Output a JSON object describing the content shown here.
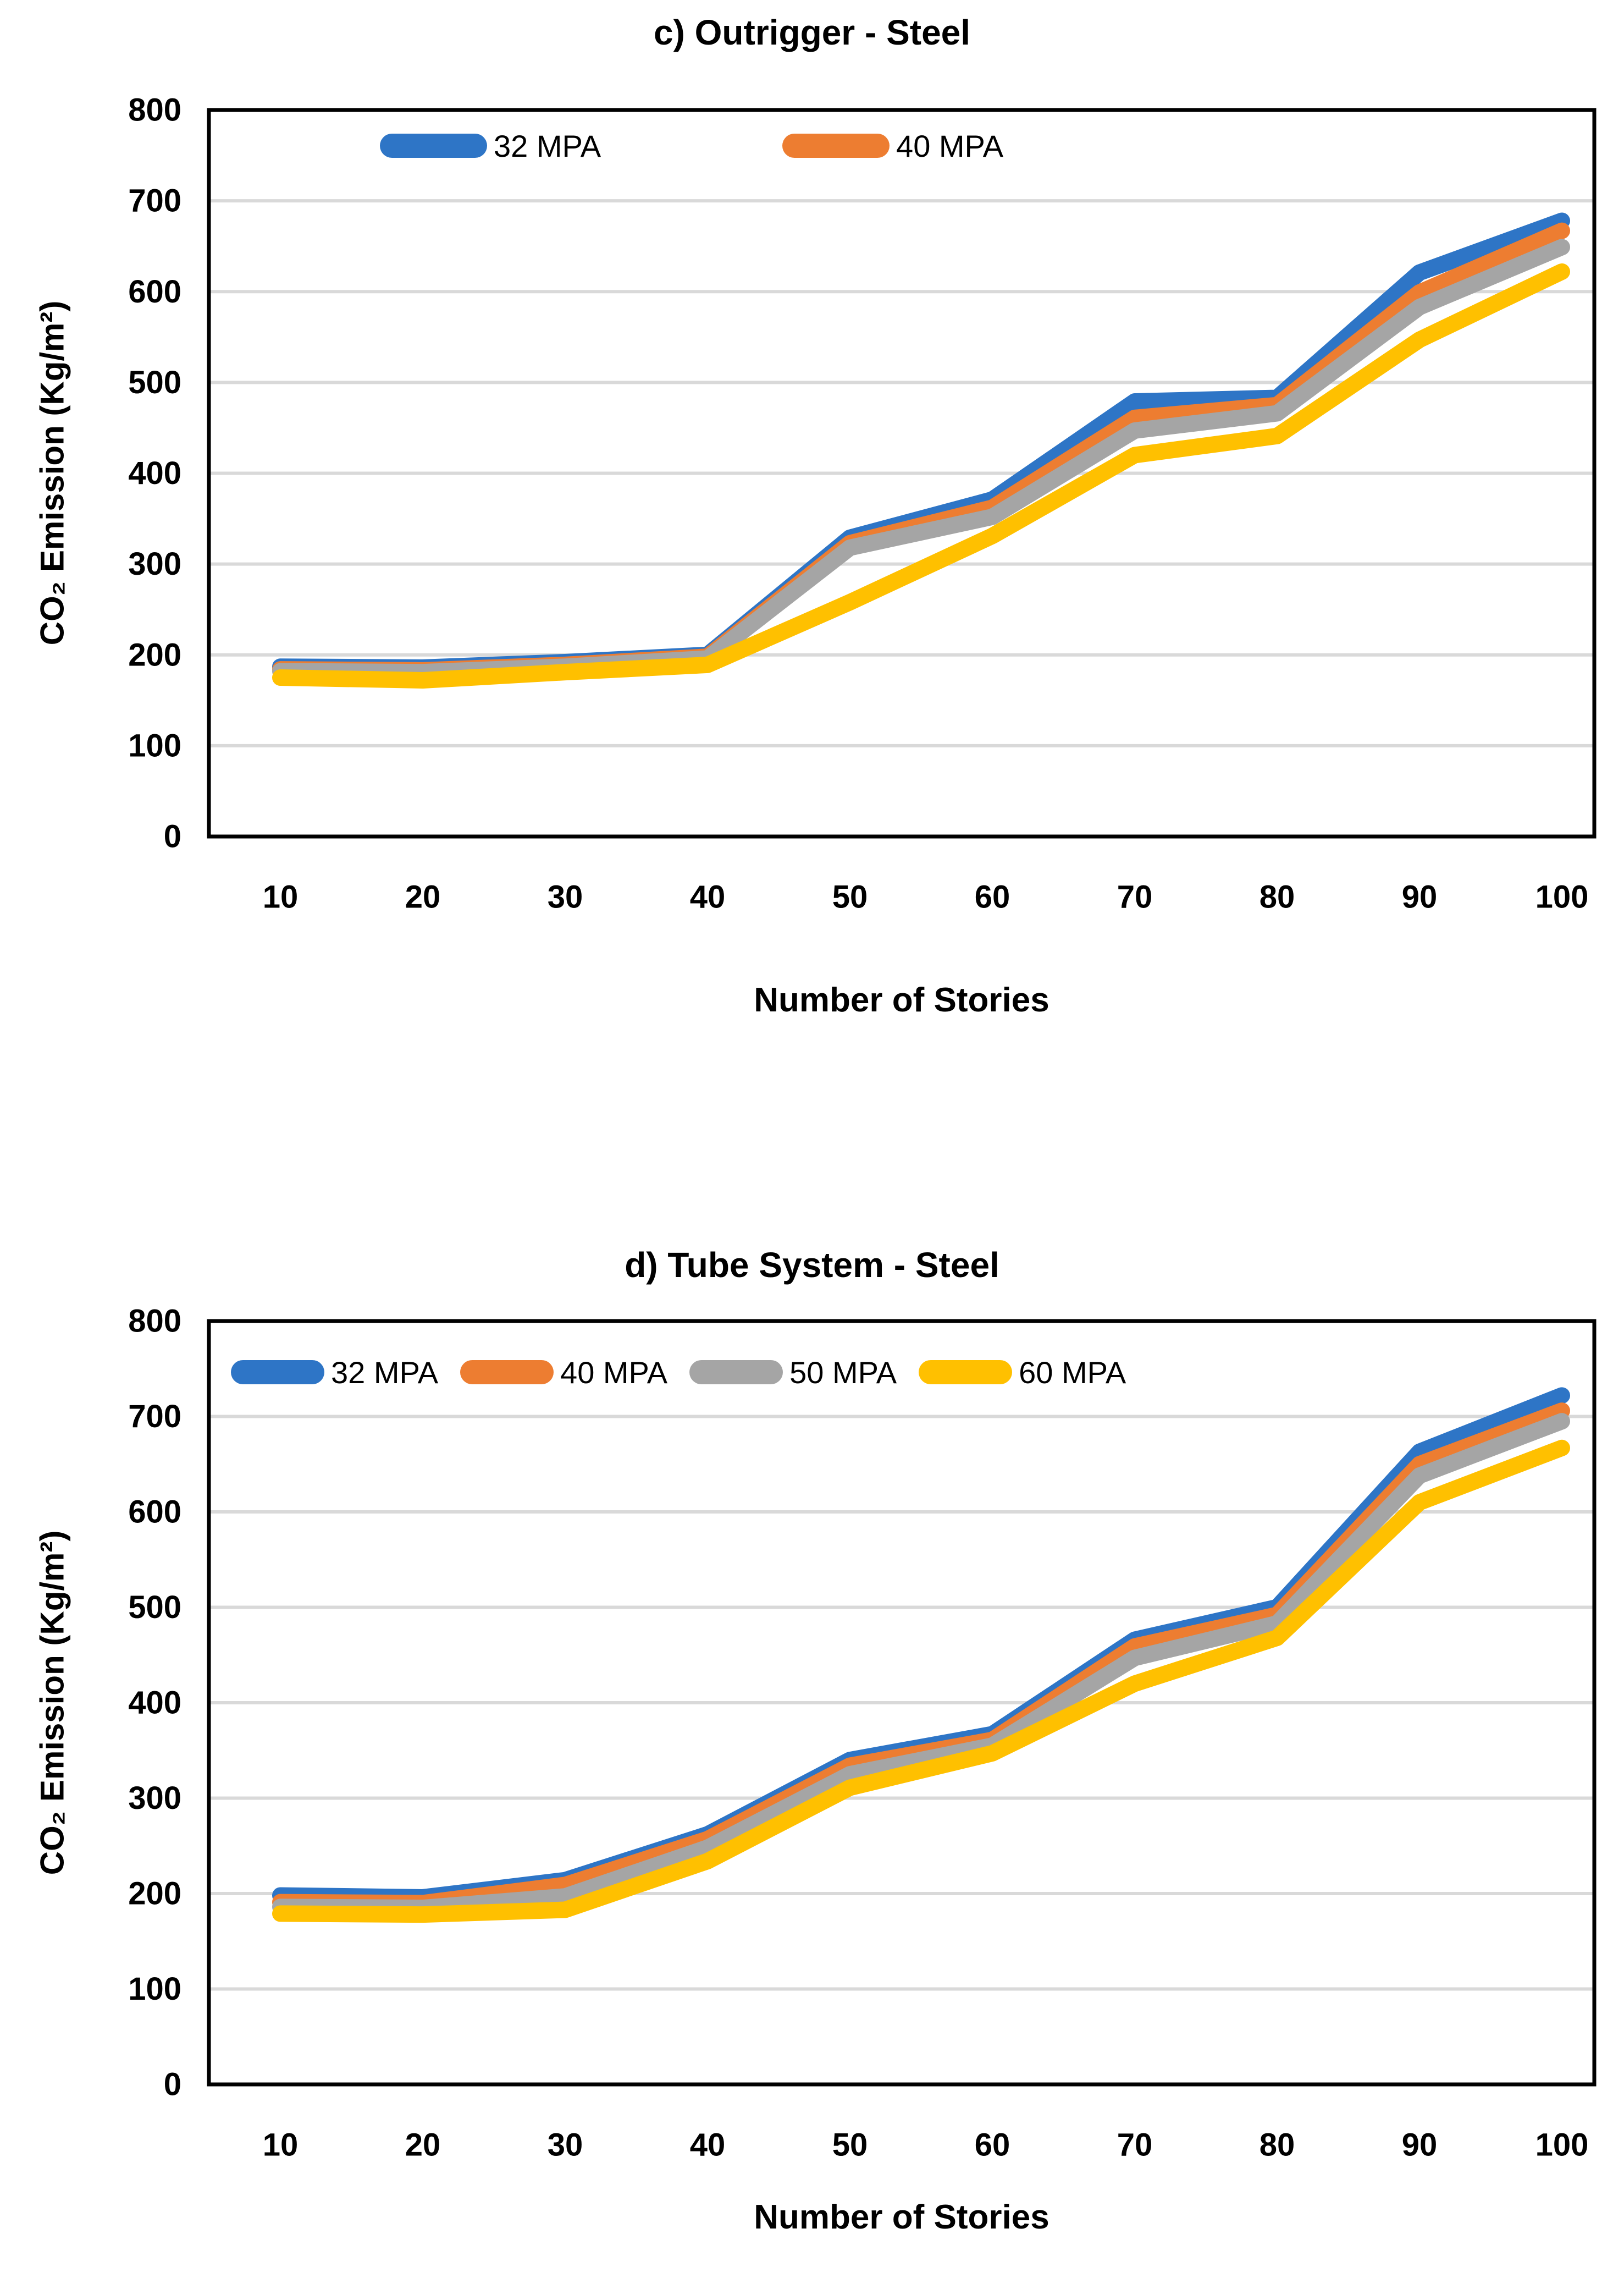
{
  "page_title": "CO2 emission comparison line charts",
  "chart_data": [
    {
      "type": "line",
      "title": "c) Outrigger - Steel",
      "xlabel": "Number of Stories",
      "ylabel": "CO₂ Emission (Kg/m²)",
      "x": [
        10,
        20,
        30,
        40,
        50,
        60,
        70,
        80,
        90,
        100
      ],
      "ylim": [
        0,
        800
      ],
      "yticks": [
        0,
        100,
        200,
        300,
        400,
        500,
        600,
        700,
        800
      ],
      "grid": "horizontal",
      "legend_position": "top-inside",
      "series": [
        {
          "name": "32 MPA",
          "color": "#2E75C6",
          "values": [
            187,
            186,
            192,
            200,
            329,
            371,
            479,
            483,
            621,
            678
          ]
        },
        {
          "name": "40 MPA",
          "color": "#ED7D31",
          "values": [
            184,
            183,
            189,
            198,
            323,
            362,
            461,
            475,
            599,
            667
          ]
        },
        {
          "name": "50 MPA",
          "color": "#A5A5A5",
          "values": [
            182,
            181,
            187,
            196,
            318,
            352,
            447,
            466,
            583,
            649
          ]
        },
        {
          "name": "60 MPA",
          "color": "#FFC000",
          "values": [
            175,
            172,
            181,
            189,
            258,
            331,
            420,
            441,
            547,
            622
          ]
        }
      ],
      "legend": [
        {
          "label": "32 MPA",
          "color": "#2E75C6"
        },
        {
          "label": "40 MPA",
          "color": "#ED7D31"
        }
      ]
    },
    {
      "type": "line",
      "title": "d) Tube System - Steel",
      "xlabel": "Number of Stories",
      "ylabel": "CO₂ Emission (Kg/m²)",
      "x": [
        10,
        20,
        30,
        40,
        50,
        60,
        70,
        80,
        90,
        100
      ],
      "ylim": [
        0,
        800
      ],
      "yticks": [
        0,
        100,
        200,
        300,
        400,
        500,
        600,
        700,
        800
      ],
      "grid": "horizontal",
      "legend_position": "top-inside",
      "series": [
        {
          "name": "32 MPA",
          "color": "#2E75C6",
          "values": [
            198,
            196,
            214,
            262,
            340,
            367,
            466,
            500,
            663,
            722
          ]
        },
        {
          "name": "40 MPA",
          "color": "#ED7D31",
          "values": [
            191,
            190,
            209,
            257,
            334,
            361,
            459,
            492,
            650,
            706
          ]
        },
        {
          "name": "50 MPA",
          "color": "#A5A5A5",
          "values": [
            186,
            185,
            197,
            248,
            325,
            355,
            447,
            483,
            638,
            695
          ]
        },
        {
          "name": "60 MPA",
          "color": "#FFC000",
          "values": [
            179,
            178,
            183,
            234,
            311,
            347,
            420,
            468,
            610,
            667
          ]
        }
      ],
      "legend": [
        {
          "label": "32 MPA",
          "color": "#2E75C6"
        },
        {
          "label": "40 MPA",
          "color": "#ED7D31"
        },
        {
          "label": "50 MPA",
          "color": "#A5A5A5"
        },
        {
          "label": "60 MPA",
          "color": "#FFC000"
        }
      ]
    }
  ],
  "style": {
    "gridline_color": "#D9D9D9",
    "plot_border_color": "#000000",
    "background": "#FFFFFF"
  }
}
